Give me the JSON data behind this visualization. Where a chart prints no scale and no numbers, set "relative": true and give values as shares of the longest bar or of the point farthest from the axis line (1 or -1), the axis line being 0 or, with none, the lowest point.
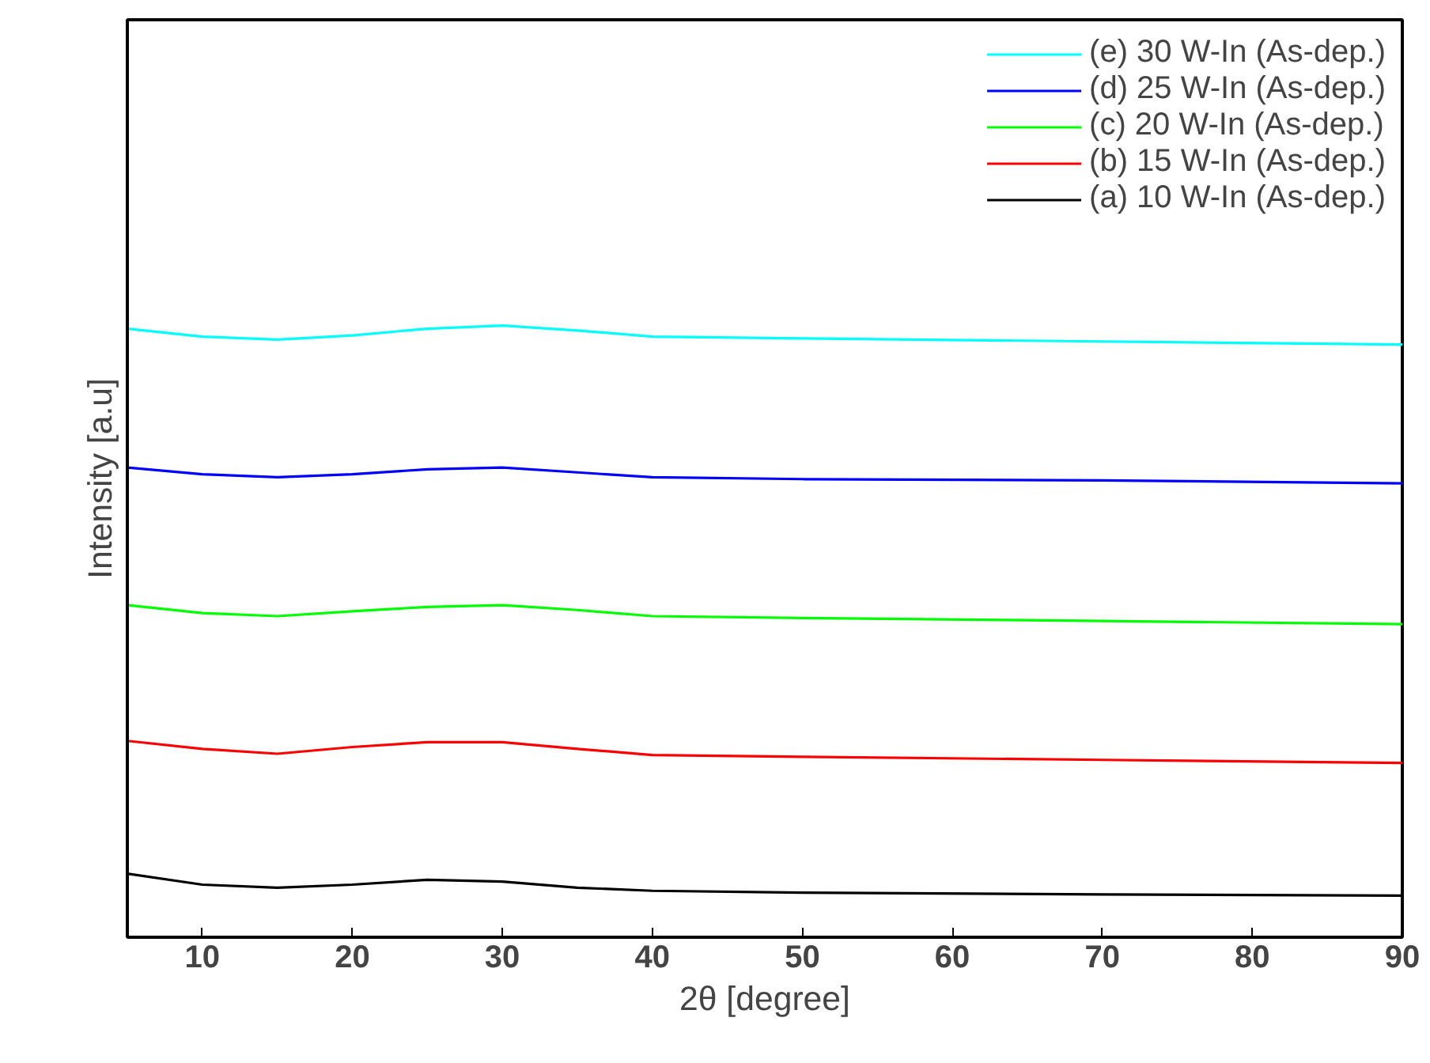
{
  "chart_data": {
    "type": "line",
    "relative": true,
    "xlabel": "2θ [degree]",
    "ylabel": "Intensity [a.u]",
    "x": [
      5,
      10,
      15,
      20,
      25,
      30,
      35,
      40,
      50,
      70,
      90
    ],
    "xlim": [
      5,
      90
    ],
    "xticks": [
      10,
      20,
      30,
      40,
      50,
      60,
      70,
      80,
      90
    ],
    "tick_labels": "x",
    "grid": false,
    "legend": "top right",
    "marker": "none",
    "line_style": "solid",
    "series": [
      {
        "name": "(e) 30 W-In (As-dep.)",
        "color": "#00ffff",
        "values": [
          0.995,
          0.982,
          0.977,
          0.984,
          0.995,
          1,
          0.992,
          0.982,
          0.979,
          0.974,
          0.969
        ]
      },
      {
        "name": "(d) 25 W-In (As-dep.)",
        "color": "#0000ff",
        "values": [
          0.768,
          0.757,
          0.752,
          0.757,
          0.765,
          0.768,
          0.76,
          0.752,
          0.749,
          0.747,
          0.742
        ]
      },
      {
        "name": "(c) 20 W-In (As-dep.)",
        "color": "#00ff00",
        "values": [
          0.543,
          0.53,
          0.525,
          0.533,
          0.54,
          0.543,
          0.535,
          0.525,
          0.522,
          0.517,
          0.512
        ]
      },
      {
        "name": "(b) 15 W-In (As-dep.)",
        "color": "#ff0000",
        "values": [
          0.321,
          0.308,
          0.3,
          0.311,
          0.319,
          0.319,
          0.308,
          0.298,
          0.295,
          0.29,
          0.285
        ]
      },
      {
        "name": "(a) 10 W-In (As-dep.)",
        "color": "#000000",
        "values": [
          0.104,
          0.086,
          0.081,
          0.086,
          0.094,
          0.091,
          0.081,
          0.076,
          0.073,
          0.07,
          0.068
        ]
      }
    ]
  }
}
